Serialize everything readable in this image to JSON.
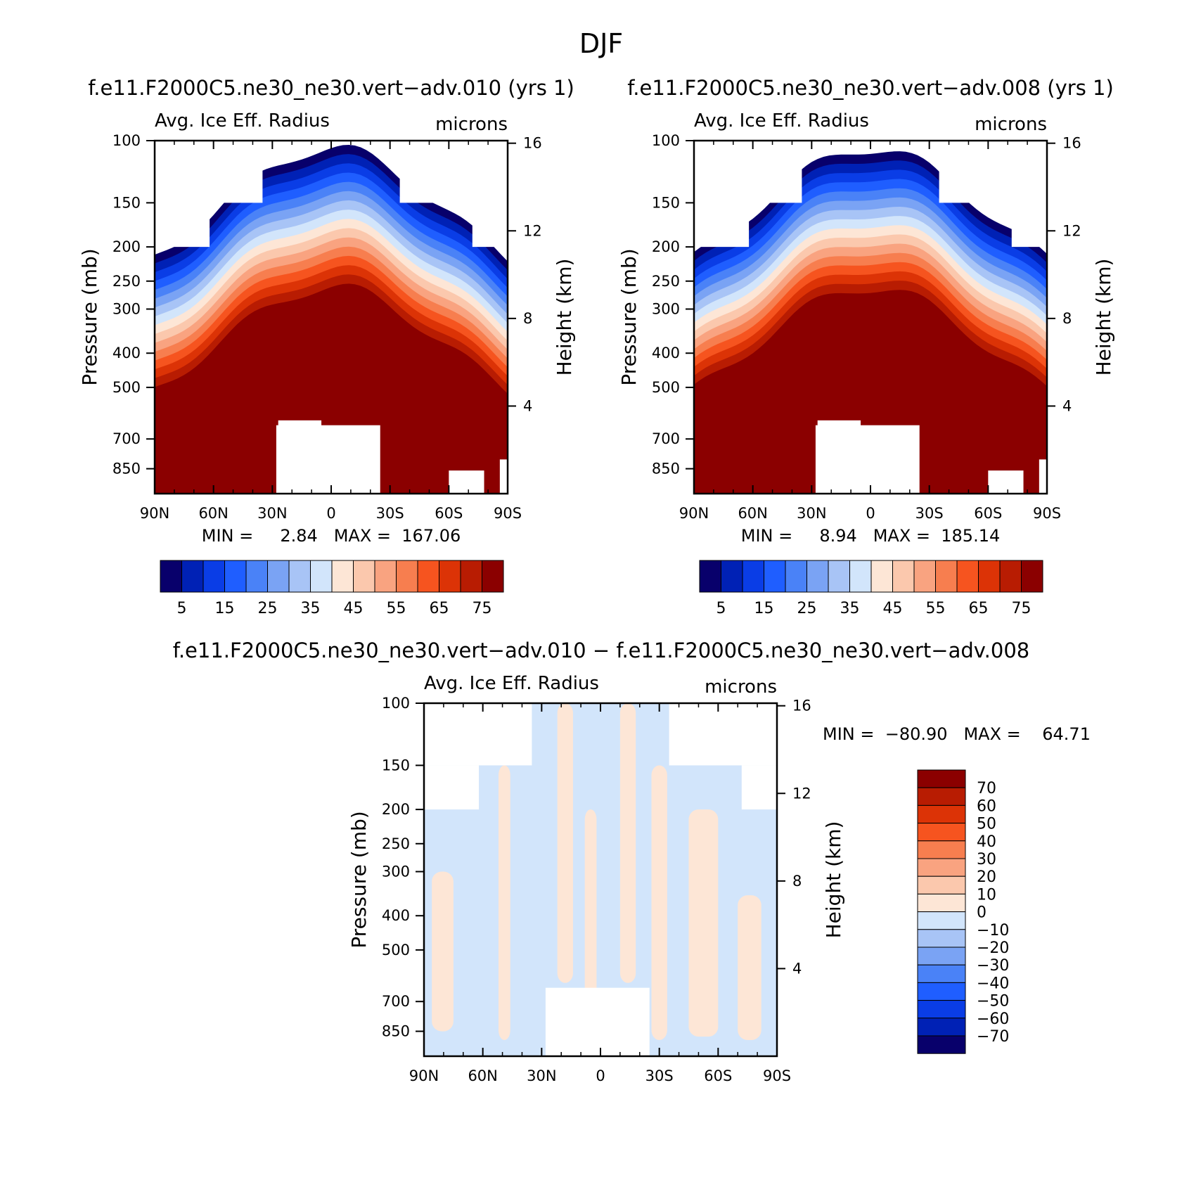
{
  "figure": {
    "title": "DJF",
    "panels": [
      {
        "title": "f.e11.F2000C5.ne30_ne30.vert−adv.010 (yrs 1)",
        "left_label": "Avg. Ice Eff. Radius",
        "right_label": "microns",
        "stats": "MIN =     2.84   MAX =  167.06"
      },
      {
        "title": "f.e11.F2000C5.ne30_ne30.vert−adv.008 (yrs 1)",
        "left_label": "Avg. Ice Eff. Radius",
        "right_label": "microns",
        "stats": "MIN =     8.94   MAX =  185.14"
      },
      {
        "title": "f.e11.F2000C5.ne30_ne30.vert−adv.010 − f.e11.F2000C5.ne30_ne30.vert−adv.008",
        "left_label": "Avg. Ice Eff. Radius",
        "right_label": "microns",
        "stats": "MIN =  −80.90   MAX =    64.71"
      }
    ],
    "colorbar_main": {
      "colors": [
        "#08006b",
        "#0021b5",
        "#0a3de6",
        "#1f5eff",
        "#4a82f7",
        "#7aa3f4",
        "#a8c4f6",
        "#d2e5fb",
        "#fde6d6",
        "#fbc8ad",
        "#f9a380",
        "#f77e4f",
        "#f6541f",
        "#dc3306",
        "#b81c02",
        "#8b0000"
      ],
      "labels": [
        "5",
        "15",
        "25",
        "35",
        "45",
        "55",
        "65",
        "75"
      ]
    },
    "colorbar_diff": {
      "colors": [
        "#8b0000",
        "#b81c02",
        "#dc3306",
        "#f6541f",
        "#f77e4f",
        "#f9a380",
        "#fbc8ad",
        "#fde6d6",
        "#d2e5fb",
        "#a8c4f6",
        "#7aa3f4",
        "#4a82f7",
        "#1f5eff",
        "#0a3de6",
        "#0021b5",
        "#08006b"
      ],
      "labels": [
        "70",
        "60",
        "50",
        "40",
        "30",
        "20",
        "10",
        "0",
        "−10",
        "−20",
        "−30",
        "−40",
        "−50",
        "−60",
        "−70"
      ]
    }
  },
  "chart_data": [
    {
      "type": "heatmap",
      "title": "f.e11.F2000C5.ne30_ne30.vert−adv.010 (yrs 1)",
      "xlabel": "",
      "ylabel": "Pressure (mb)",
      "y2label": "Height (km)",
      "x_ticks": [
        "90N",
        "60N",
        "30N",
        "0",
        "30S",
        "60S",
        "90S"
      ],
      "y_ticks": [
        100,
        150,
        200,
        250,
        300,
        400,
        500,
        700,
        850
      ],
      "y2_ticks": [
        16,
        12,
        8,
        4
      ],
      "y_scale": "log",
      "ylim": [
        100,
        1000
      ],
      "xlim": [
        90,
        -90
      ],
      "units": "microns",
      "min": 2.84,
      "max": 167.06
    },
    {
      "type": "heatmap",
      "title": "f.e11.F2000C5.ne30_ne30.vert−adv.008 (yrs 1)",
      "xlabel": "",
      "ylabel": "Pressure (mb)",
      "y2label": "Height (km)",
      "x_ticks": [
        "90N",
        "60N",
        "30N",
        "0",
        "30S",
        "60S",
        "90S"
      ],
      "y_ticks": [
        100,
        150,
        200,
        250,
        300,
        400,
        500,
        700,
        850
      ],
      "y2_ticks": [
        16,
        12,
        8,
        4
      ],
      "y_scale": "log",
      "ylim": [
        100,
        1000
      ],
      "xlim": [
        90,
        -90
      ],
      "units": "microns",
      "min": 8.94,
      "max": 185.14
    },
    {
      "type": "heatmap",
      "title": "f.e11.F2000C5.ne30_ne30.vert−adv.010 − f.e11.F2000C5.ne30_ne30.vert−adv.008",
      "xlabel": "",
      "ylabel": "Pressure (mb)",
      "y2label": "Height (km)",
      "x_ticks": [
        "90N",
        "60N",
        "30N",
        "0",
        "30S",
        "60S",
        "90S"
      ],
      "y_ticks": [
        100,
        150,
        200,
        250,
        300,
        400,
        500,
        700,
        850
      ],
      "y2_ticks": [
        16,
        12,
        8,
        4
      ],
      "y_scale": "log",
      "ylim": [
        100,
        1000
      ],
      "xlim": [
        90,
        -90
      ],
      "units": "microns",
      "min": -80.9,
      "max": 64.71
    }
  ]
}
